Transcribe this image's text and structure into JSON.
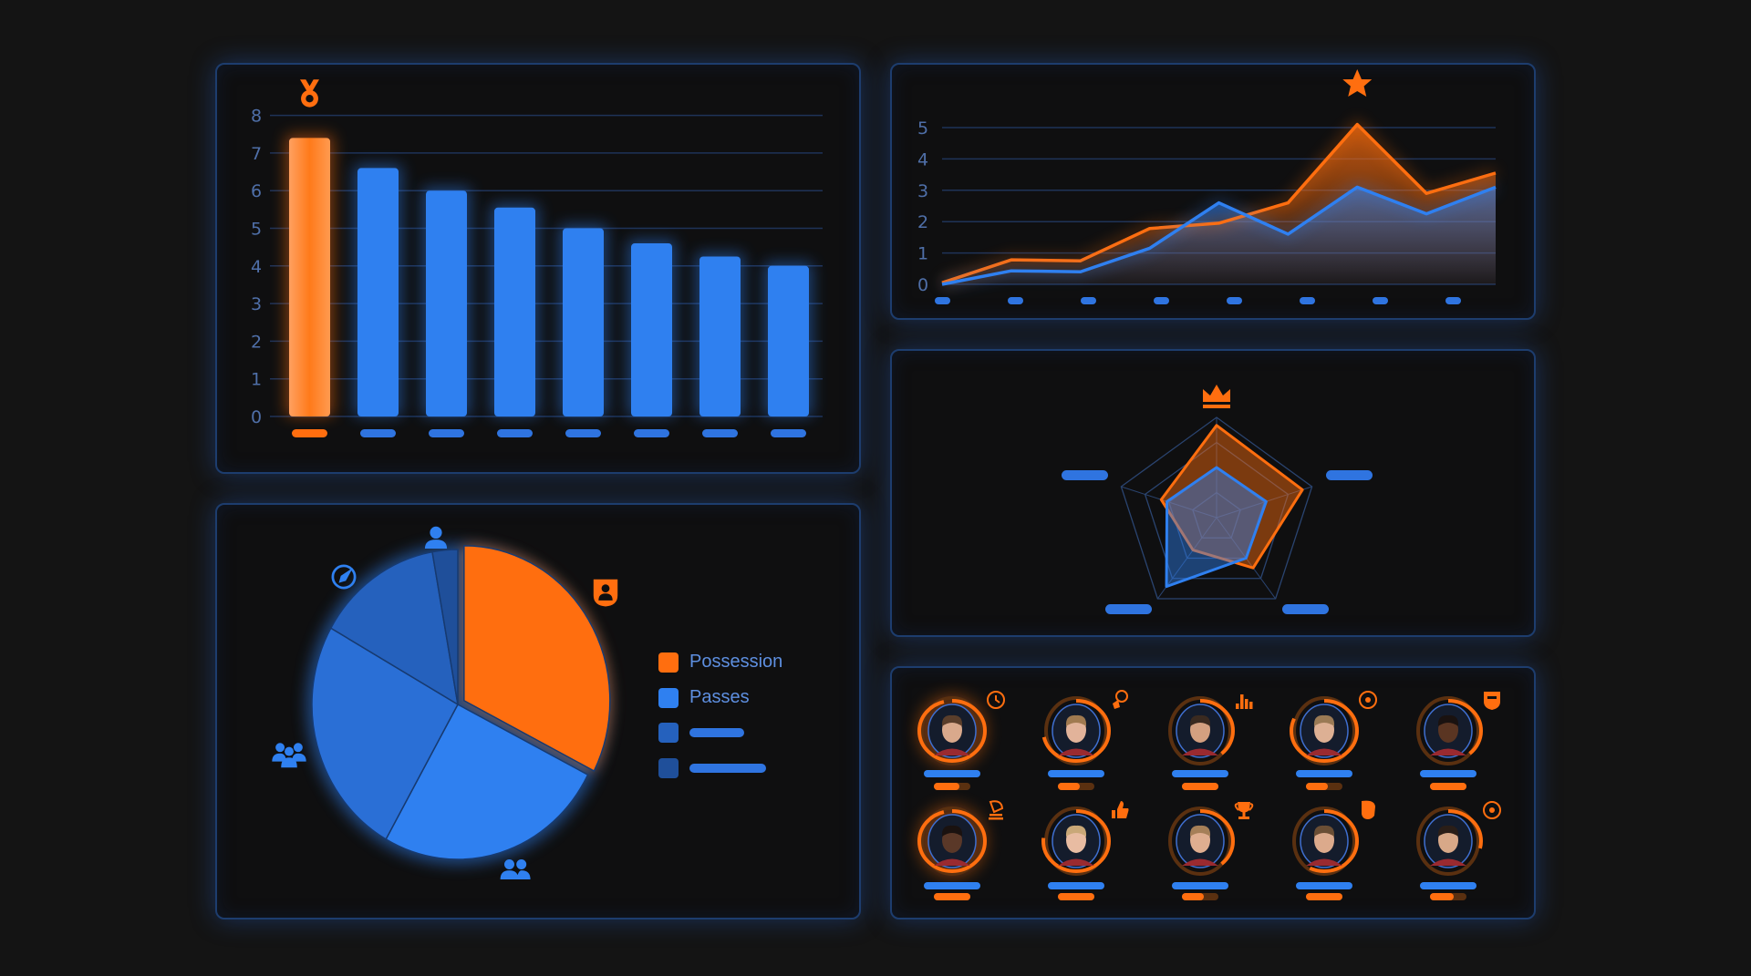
{
  "colors": {
    "accent": "#ff6e0f",
    "primary": "#2f80f0",
    "grid": "#1f3358",
    "panel_border": "#1d3d6e"
  },
  "chart_data": [
    {
      "type": "bar",
      "title": "",
      "xlabel": "",
      "ylabel": "",
      "ylim": [
        0,
        8
      ],
      "yticks": [
        0,
        1,
        2,
        3,
        4,
        5,
        6,
        7,
        8
      ],
      "categories": [
        "",
        "",
        "",
        "",
        "",
        "",
        "",
        ""
      ],
      "values": [
        7.4,
        6.6,
        6.0,
        5.55,
        5.0,
        4.6,
        4.25,
        4.0
      ],
      "highlight_index": 0,
      "highlight_icon": "medal-icon",
      "grid": true
    },
    {
      "type": "area",
      "title": "",
      "xlabel": "",
      "ylabel": "",
      "ylim": [
        0,
        5
      ],
      "yticks": [
        0,
        1,
        2,
        3,
        4,
        5
      ],
      "x_tick_count": 8,
      "grid": true,
      "peak_icon": "star-icon",
      "series": [
        {
          "color": "#ff6e0f",
          "values": [
            0.05,
            0.78,
            0.75,
            1.78,
            1.95,
            2.6,
            5.1,
            2.9,
            3.55
          ]
        },
        {
          "color": "#2f80f0",
          "values": [
            0,
            0.43,
            0.4,
            1.15,
            2.6,
            1.6,
            3.1,
            2.25,
            3.1
          ]
        }
      ]
    },
    {
      "type": "radar",
      "axes_count": 5,
      "rings": 4,
      "top_icon": "crown-icon",
      "series": [
        {
          "color": "#ff6e0f",
          "values": [
            0.92,
            0.9,
            0.62,
            0.4,
            0.58
          ]
        },
        {
          "color": "#2f80f0",
          "values": [
            0.5,
            0.52,
            0.5,
            0.85,
            0.52
          ]
        }
      ]
    },
    {
      "type": "pie",
      "legend_position": "right",
      "slices": [
        {
          "label": "Possession",
          "value": 32.5,
          "color": "#ff6e0f",
          "icon": "user-badge-icon"
        },
        {
          "label": "Passes",
          "value": 25.7,
          "color": "#2f80f0",
          "icon": "group-icon"
        },
        {
          "label": "",
          "value": 25.0,
          "color": "#2a6fd6",
          "icon": "team-icon"
        },
        {
          "label": "",
          "value": 14.0,
          "color": "#2561bd",
          "icon": "compass-icon"
        },
        {
          "label": "",
          "value": 2.8,
          "color": "#1f4f9a",
          "icon": "person-icon"
        }
      ]
    }
  ],
  "players": [
    {
      "icon": "clock-icon",
      "ring": 1.0,
      "bar": 0.7,
      "skin": "#d9a98c",
      "hair": "#5a3e2b"
    },
    {
      "icon": "kick-icon",
      "ring": 0.75,
      "bar": 0.6,
      "skin": "#e2b39a",
      "hair": "#a07a50"
    },
    {
      "icon": "bar-chart-icon",
      "ring": 0.4,
      "bar": 1.0,
      "skin": "#d4a080",
      "hair": "#3a2a20"
    },
    {
      "icon": "ball-icon",
      "ring": 0.85,
      "bar": 0.6,
      "skin": "#ddb094",
      "hair": "#9a7a55"
    },
    {
      "icon": "shield-icon",
      "ring": 0.4,
      "bar": 1.0,
      "skin": "#5a3522",
      "hair": "#1a1210"
    },
    {
      "icon": "trophy-stand-icon",
      "ring": 1.0,
      "bar": 1.0,
      "skin": "#5a3828",
      "hair": "#1a1210"
    },
    {
      "icon": "thumbs-up-icon",
      "ring": 0.8,
      "bar": 1.0,
      "skin": "#e8bca2",
      "hair": "#c9a878"
    },
    {
      "icon": "trophy-icon",
      "ring": 0.4,
      "bar": 0.6,
      "skin": "#dfae90",
      "hair": "#a57f58"
    },
    {
      "icon": "whistle-icon",
      "ring": 0.6,
      "bar": 1.0,
      "skin": "#dcaa8c",
      "hair": "#6a4e35"
    },
    {
      "icon": "football-icon",
      "ring": 0.3,
      "bar": 0.65,
      "skin": "#d8a888",
      "hair": "#2a1e18"
    }
  ]
}
